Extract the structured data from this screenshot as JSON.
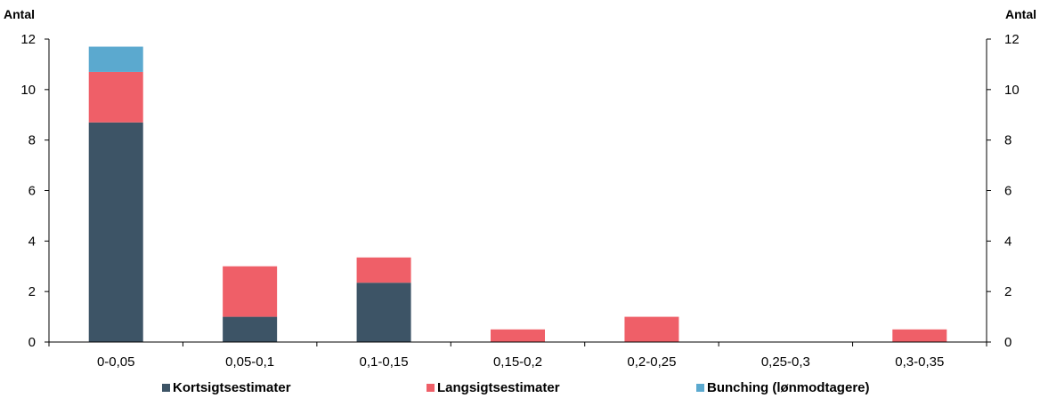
{
  "chart_data": {
    "type": "bar",
    "stacked": true,
    "ylabel_left": "Antal",
    "ylabel_right": "Antal",
    "ylim": [
      0,
      12
    ],
    "yticks": [
      0,
      2,
      4,
      6,
      8,
      10,
      12
    ],
    "grid": false,
    "legend_position": "bottom",
    "categories": [
      "0-0,05",
      "0,05-0,1",
      "0,1-0,15",
      "0,15-0,2",
      "0,2-0,25",
      "0,25-0,3",
      "0,3-0,35"
    ],
    "series": [
      {
        "name": "Kortsigtsestimater",
        "color": "#3d5466",
        "values": [
          8.7,
          1.0,
          2.35,
          0,
          0,
          0,
          0
        ]
      },
      {
        "name": "Langsigtsestimater",
        "color": "#ef5f68",
        "values": [
          2.0,
          2.0,
          1.0,
          0.5,
          1.0,
          0,
          0.5
        ]
      },
      {
        "name": "Bunching (lønmodtagere)",
        "color": "#5ba9cf",
        "values": [
          1.0,
          0,
          0,
          0,
          0,
          0,
          0
        ]
      }
    ]
  }
}
